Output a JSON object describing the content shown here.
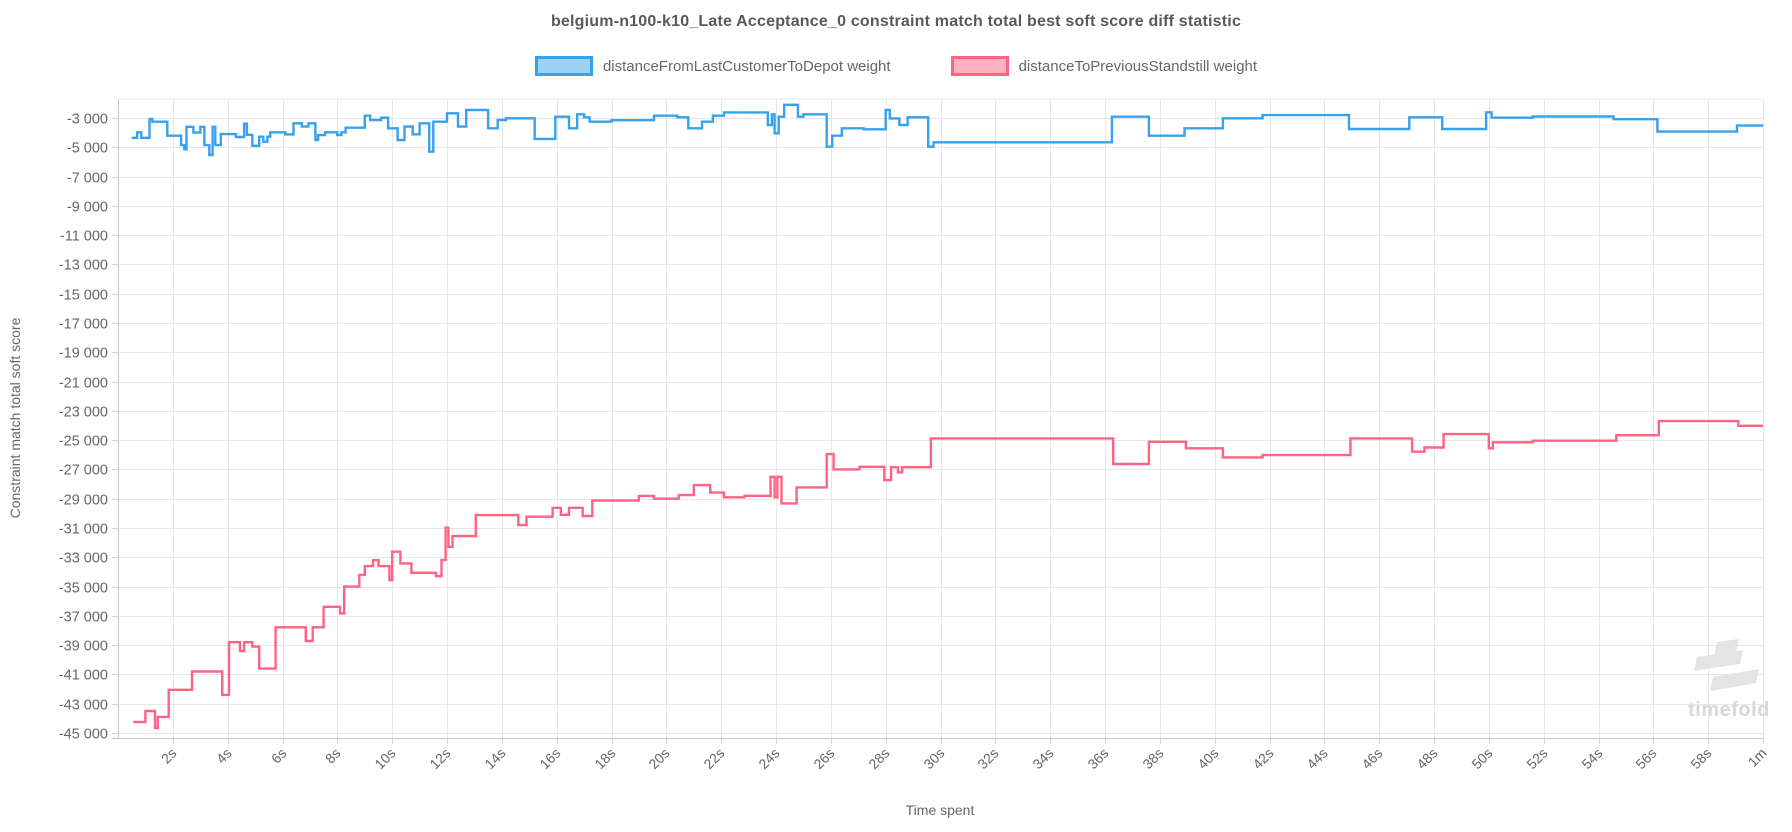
{
  "title": "belgium-n100-k10_Late Acceptance_0 constraint match total best soft score diff statistic",
  "watermark": {
    "text": "timefold"
  },
  "chart_data": {
    "type": "line",
    "step": true,
    "grid": true,
    "legend_position": "top",
    "title": "belgium-n100-k10_Late Acceptance_0 constraint match total best soft score diff statistic",
    "xlabel": "Time spent",
    "ylabel": "Constraint match total soft score",
    "xlim": [
      0,
      60
    ],
    "ylim": [
      -45341,
      -1703
    ],
    "x_ticks": [
      {
        "t": 2,
        "label": "2s"
      },
      {
        "t": 4,
        "label": "4s"
      },
      {
        "t": 6,
        "label": "6s"
      },
      {
        "t": 8,
        "label": "8s"
      },
      {
        "t": 10,
        "label": "10s"
      },
      {
        "t": 12,
        "label": "12s"
      },
      {
        "t": 14,
        "label": "14s"
      },
      {
        "t": 16,
        "label": "16s"
      },
      {
        "t": 18,
        "label": "18s"
      },
      {
        "t": 20,
        "label": "20s"
      },
      {
        "t": 22,
        "label": "22s"
      },
      {
        "t": 24,
        "label": "24s"
      },
      {
        "t": 26,
        "label": "26s"
      },
      {
        "t": 28,
        "label": "28s"
      },
      {
        "t": 30,
        "label": "30s"
      },
      {
        "t": 32,
        "label": "32s"
      },
      {
        "t": 34,
        "label": "34s"
      },
      {
        "t": 36,
        "label": "36s"
      },
      {
        "t": 38,
        "label": "38s"
      },
      {
        "t": 40,
        "label": "40s"
      },
      {
        "t": 42,
        "label": "42s"
      },
      {
        "t": 44,
        "label": "44s"
      },
      {
        "t": 46,
        "label": "46s"
      },
      {
        "t": 48,
        "label": "48s"
      },
      {
        "t": 50,
        "label": "50s"
      },
      {
        "t": 52,
        "label": "52s"
      },
      {
        "t": 54,
        "label": "54s"
      },
      {
        "t": 56,
        "label": "56s"
      },
      {
        "t": 58,
        "label": "58s"
      },
      {
        "t": 60,
        "label": "1m"
      }
    ],
    "y_ticks": [
      {
        "v": -3000,
        "label": "-3 000"
      },
      {
        "v": -5000,
        "label": "-5 000"
      },
      {
        "v": -7000,
        "label": "-7 000"
      },
      {
        "v": -9000,
        "label": "-9 000"
      },
      {
        "v": -11000,
        "label": "-11 000"
      },
      {
        "v": -13000,
        "label": "-13 000"
      },
      {
        "v": -15000,
        "label": "-15 000"
      },
      {
        "v": -17000,
        "label": "-17 000"
      },
      {
        "v": -19000,
        "label": "-19 000"
      },
      {
        "v": -21000,
        "label": "-21 000"
      },
      {
        "v": -23000,
        "label": "-23 000"
      },
      {
        "v": -25000,
        "label": "-25 000"
      },
      {
        "v": -27000,
        "label": "-27 000"
      },
      {
        "v": -29000,
        "label": "-29 000"
      },
      {
        "v": -31000,
        "label": "-31 000"
      },
      {
        "v": -33000,
        "label": "-33 000"
      },
      {
        "v": -35000,
        "label": "-35 000"
      },
      {
        "v": -37000,
        "label": "-37 000"
      },
      {
        "v": -39000,
        "label": "-39 000"
      },
      {
        "v": -41000,
        "label": "-41 000"
      },
      {
        "v": -43000,
        "label": "-43 000"
      },
      {
        "v": -45000,
        "label": "-45 000"
      }
    ],
    "series": [
      {
        "name": "distanceFromLastCustomerToDepot weight",
        "color": "#36A2EB",
        "fill": "#9BD1F5",
        "end_t": 60,
        "points": [
          [
            0.5,
            -4350
          ],
          [
            0.7,
            -3980
          ],
          [
            0.85,
            -4350
          ],
          [
            1.15,
            -3070
          ],
          [
            1.25,
            -3250
          ],
          [
            1.8,
            -4210
          ],
          [
            2.3,
            -4850
          ],
          [
            2.42,
            -5140
          ],
          [
            2.5,
            -3600
          ],
          [
            2.75,
            -4000
          ],
          [
            3.0,
            -3600
          ],
          [
            3.15,
            -4850
          ],
          [
            3.33,
            -5530
          ],
          [
            3.45,
            -3600
          ],
          [
            3.55,
            -4850
          ],
          [
            3.75,
            -4100
          ],
          [
            4.3,
            -4300
          ],
          [
            4.6,
            -3390
          ],
          [
            4.7,
            -4150
          ],
          [
            4.9,
            -4900
          ],
          [
            5.15,
            -4280
          ],
          [
            5.3,
            -4620
          ],
          [
            5.45,
            -4280
          ],
          [
            5.55,
            -3980
          ],
          [
            6.1,
            -4120
          ],
          [
            6.4,
            -3360
          ],
          [
            6.7,
            -3590
          ],
          [
            6.95,
            -3360
          ],
          [
            7.2,
            -4500
          ],
          [
            7.3,
            -4170
          ],
          [
            7.55,
            -3980
          ],
          [
            8.0,
            -4170
          ],
          [
            8.15,
            -3980
          ],
          [
            8.3,
            -3660
          ],
          [
            9.0,
            -2840
          ],
          [
            9.2,
            -3140
          ],
          [
            9.6,
            -2980
          ],
          [
            9.85,
            -3700
          ],
          [
            10.2,
            -4500
          ],
          [
            10.45,
            -3590
          ],
          [
            10.75,
            -4110
          ],
          [
            11.0,
            -3360
          ],
          [
            11.35,
            -5300
          ],
          [
            11.5,
            -3250
          ],
          [
            12.0,
            -2680
          ],
          [
            12.4,
            -3590
          ],
          [
            12.7,
            -2455
          ],
          [
            13.5,
            -3700
          ],
          [
            13.85,
            -3140
          ],
          [
            14.15,
            -3020
          ],
          [
            15.2,
            -4430
          ],
          [
            15.95,
            -2910
          ],
          [
            16.45,
            -3700
          ],
          [
            16.75,
            -2750
          ],
          [
            17.0,
            -2955
          ],
          [
            17.2,
            -3250
          ],
          [
            18.0,
            -3150
          ],
          [
            19.55,
            -2845
          ],
          [
            20.4,
            -2955
          ],
          [
            20.8,
            -3700
          ],
          [
            21.3,
            -3250
          ],
          [
            21.7,
            -2845
          ],
          [
            22.1,
            -2620
          ],
          [
            23.7,
            -3480
          ],
          [
            23.85,
            -2750
          ],
          [
            23.95,
            -4045
          ],
          [
            24.1,
            -2910
          ],
          [
            24.3,
            -2100
          ],
          [
            24.8,
            -2910
          ],
          [
            25.0,
            -2750
          ],
          [
            25.85,
            -4960
          ],
          [
            26.05,
            -4210
          ],
          [
            26.4,
            -3700
          ],
          [
            27.2,
            -3770
          ],
          [
            28.0,
            -2455
          ],
          [
            28.15,
            -3025
          ],
          [
            28.5,
            -3480
          ],
          [
            28.8,
            -2955
          ],
          [
            29.55,
            -4960
          ],
          [
            29.75,
            -4660
          ],
          [
            36.25,
            -2910
          ],
          [
            37.6,
            -4210
          ],
          [
            38.9,
            -3700
          ],
          [
            40.3,
            -3020
          ],
          [
            41.75,
            -2800
          ],
          [
            44.9,
            -3750
          ],
          [
            47.1,
            -2950
          ],
          [
            48.3,
            -3750
          ],
          [
            49.9,
            -2610
          ],
          [
            50.1,
            -2980
          ],
          [
            51.6,
            -2900
          ],
          [
            54.55,
            -3080
          ],
          [
            56.15,
            -3930
          ],
          [
            59.05,
            -3520
          ]
        ]
      },
      {
        "name": "distanceToPreviousStandstill weight",
        "color": "#FF6384",
        "fill": "#FFB1C1",
        "end_t": 60,
        "points": [
          [
            0.55,
            -44250
          ],
          [
            1.0,
            -43500
          ],
          [
            1.35,
            -44650
          ],
          [
            1.45,
            -43900
          ],
          [
            1.85,
            -42050
          ],
          [
            2.7,
            -40800
          ],
          [
            3.8,
            -42400
          ],
          [
            4.05,
            -38800
          ],
          [
            4.45,
            -39400
          ],
          [
            4.6,
            -38800
          ],
          [
            4.9,
            -39100
          ],
          [
            5.15,
            -40600
          ],
          [
            5.75,
            -37780
          ],
          [
            6.85,
            -38720
          ],
          [
            7.1,
            -37780
          ],
          [
            7.5,
            -36380
          ],
          [
            8.1,
            -36830
          ],
          [
            8.25,
            -35000
          ],
          [
            8.8,
            -34200
          ],
          [
            9.0,
            -33600
          ],
          [
            9.3,
            -33200
          ],
          [
            9.5,
            -33600
          ],
          [
            9.9,
            -34550
          ],
          [
            10.0,
            -32620
          ],
          [
            10.3,
            -33420
          ],
          [
            10.7,
            -34060
          ],
          [
            11.6,
            -34290
          ],
          [
            11.8,
            -33190
          ],
          [
            11.95,
            -30970
          ],
          [
            12.05,
            -32290
          ],
          [
            12.2,
            -31550
          ],
          [
            13.05,
            -30120
          ],
          [
            14.6,
            -30800
          ],
          [
            14.9,
            -30230
          ],
          [
            15.85,
            -29620
          ],
          [
            16.15,
            -30100
          ],
          [
            16.45,
            -29620
          ],
          [
            16.95,
            -30180
          ],
          [
            17.3,
            -29130
          ],
          [
            19.0,
            -28810
          ],
          [
            19.55,
            -29000
          ],
          [
            20.45,
            -28750
          ],
          [
            21.0,
            -28070
          ],
          [
            21.6,
            -28580
          ],
          [
            22.1,
            -28900
          ],
          [
            22.85,
            -28800
          ],
          [
            23.8,
            -27500
          ],
          [
            23.95,
            -28900
          ],
          [
            24.05,
            -27500
          ],
          [
            24.2,
            -29320
          ],
          [
            24.75,
            -28230
          ],
          [
            25.85,
            -25950
          ],
          [
            26.1,
            -27000
          ],
          [
            27.05,
            -26820
          ],
          [
            27.95,
            -27730
          ],
          [
            28.2,
            -26850
          ],
          [
            28.45,
            -27200
          ],
          [
            28.6,
            -26850
          ],
          [
            29.65,
            -24880
          ],
          [
            36.3,
            -26630
          ],
          [
            37.6,
            -25110
          ],
          [
            38.95,
            -25560
          ],
          [
            40.3,
            -26180
          ],
          [
            41.75,
            -26020
          ],
          [
            44.95,
            -24880
          ],
          [
            47.2,
            -25790
          ],
          [
            47.65,
            -25500
          ],
          [
            48.35,
            -24590
          ],
          [
            50.0,
            -25560
          ],
          [
            50.15,
            -25150
          ],
          [
            51.6,
            -25040
          ],
          [
            54.65,
            -24660
          ],
          [
            56.2,
            -23700
          ],
          [
            59.1,
            -24020
          ]
        ]
      }
    ]
  }
}
